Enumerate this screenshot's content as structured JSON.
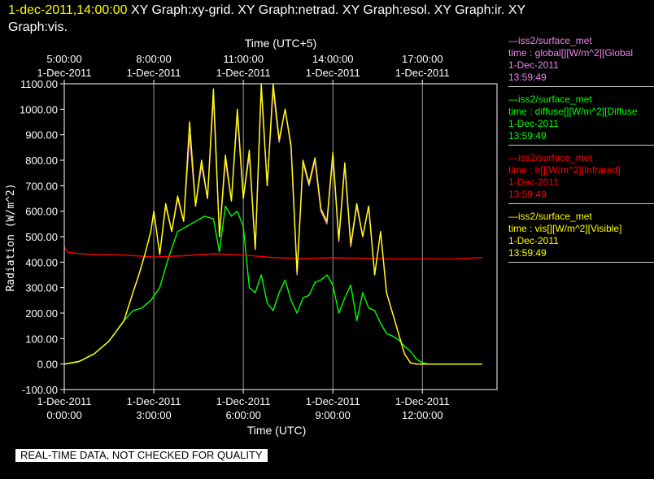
{
  "header": {
    "timestamp": "1-dec-2011,14:00:00",
    "graphs_line1": "XY Graph:xy-grid.  XY Graph:netrad.  XY Graph:esol.  XY Graph:ir.  XY",
    "graphs_line2": "Graph:vis."
  },
  "legend": [
    {
      "source": "iss2/surface_met",
      "var": "time : global[][W/m^2][Global",
      "date": "1-Dec-2011",
      "time": "13:59:49",
      "color": "#ee82ee"
    },
    {
      "source": "iss2/surface_met",
      "var": "time : diffuse[][W/m^2][Diffuse",
      "date": "1-Dec-2011",
      "time": "13:59:49",
      "color": "#00ff00"
    },
    {
      "source": "iss2/surface_met",
      "var": "time : ir[][W/m^2][Infrared]",
      "date": "1-Dec-2011",
      "time": "13:59:49",
      "color": "#ff0000"
    },
    {
      "source": "iss2/surface_met",
      "var": "time : vis[][W/m^2][Visible]",
      "date": "1-Dec-2011",
      "time": "13:59:49",
      "color": "#ffff00"
    }
  ],
  "banner": "REAL-TIME DATA, NOT CHECKED FOR QUALITY",
  "chart_data": {
    "type": "line",
    "xlabel": "Time (UTC)",
    "x2label": "Time (UTC+5)",
    "ylabel": "Radiation (W/m^2)",
    "ylim": [
      -100,
      1100
    ],
    "xlim_hours": [
      0,
      14.5
    ],
    "grid": true,
    "yticks": [
      "-100.00",
      "0.00",
      "100.00",
      "200.00",
      "300.00",
      "400.00",
      "500.00",
      "600.00",
      "700.00",
      "800.00",
      "900.00",
      "1000.00",
      "1100.00"
    ],
    "xticks_bottom": [
      {
        "date": "1-Dec-2011",
        "time": "0:00:00"
      },
      {
        "date": "1-Dec-2011",
        "time": "3:00:00"
      },
      {
        "date": "1-Dec-2011",
        "time": "6:00:00"
      },
      {
        "date": "1-Dec-2011",
        "time": "9:00:00"
      },
      {
        "date": "1-Dec-2011",
        "time": "12:00:00"
      }
    ],
    "xticks_top": [
      {
        "time": "5:00:00",
        "date": "1-Dec-2011"
      },
      {
        "time": "8:00:00",
        "date": "1-Dec-2011"
      },
      {
        "time": "11:00:00",
        "date": "1-Dec-2011"
      },
      {
        "time": "14:00:00",
        "date": "1-Dec-2011"
      },
      {
        "time": "17:00:00",
        "date": "1-Dec-2011"
      }
    ],
    "series": [
      {
        "name": "global",
        "color": "#ee82ee",
        "x": [
          0,
          0.5,
          1.0,
          1.5,
          2.0,
          2.3,
          2.5,
          2.7,
          2.9,
          3.0,
          3.2,
          3.4,
          3.6,
          3.8,
          4.0,
          4.2,
          4.4,
          4.6,
          4.8,
          5.0,
          5.2,
          5.4,
          5.6,
          5.8,
          6.0,
          6.2,
          6.4,
          6.6,
          6.8,
          7.0,
          7.2,
          7.4,
          7.6,
          7.8,
          8.0,
          8.2,
          8.4,
          8.6,
          8.8,
          9.0,
          9.2,
          9.4,
          9.6,
          9.8,
          10.0,
          10.2,
          10.4,
          10.6,
          10.8,
          11.0,
          11.2,
          11.4,
          11.6,
          11.8,
          12.0,
          12.5,
          13.0,
          13.5,
          14.0
        ],
        "y": [
          0,
          10,
          40,
          90,
          170,
          280,
          350,
          430,
          520,
          600,
          430,
          620,
          520,
          650,
          560,
          900,
          620,
          780,
          650,
          1050,
          500,
          800,
          640,
          980,
          650,
          820,
          450,
          1080,
          700,
          1080,
          870,
          1000,
          850,
          350,
          790,
          700,
          800,
          600,
          550,
          820,
          480,
          780,
          460,
          620,
          500,
          620,
          350,
          520,
          280,
          200,
          120,
          40,
          5,
          0,
          0,
          0,
          0,
          0,
          0
        ]
      },
      {
        "name": "diffuse",
        "color": "#00ff00",
        "x": [
          0,
          0.5,
          1.0,
          1.5,
          2.0,
          2.3,
          2.6,
          2.9,
          3.2,
          3.5,
          3.8,
          4.1,
          4.4,
          4.7,
          5.0,
          5.2,
          5.4,
          5.6,
          5.8,
          6.0,
          6.2,
          6.4,
          6.6,
          6.8,
          7.0,
          7.2,
          7.4,
          7.6,
          7.8,
          8.0,
          8.2,
          8.4,
          8.6,
          8.8,
          9.0,
          9.2,
          9.4,
          9.6,
          9.8,
          10.0,
          10.2,
          10.4,
          10.6,
          10.8,
          11.0,
          11.2,
          11.4,
          11.6,
          11.8,
          12.0,
          12.2,
          12.5,
          13.0,
          13.5,
          14.0
        ],
        "y": [
          0,
          10,
          40,
          90,
          170,
          210,
          220,
          250,
          300,
          420,
          520,
          540,
          560,
          580,
          570,
          440,
          620,
          580,
          600,
          540,
          300,
          280,
          350,
          240,
          210,
          280,
          330,
          250,
          200,
          260,
          270,
          320,
          330,
          350,
          310,
          200,
          260,
          310,
          170,
          280,
          220,
          210,
          160,
          120,
          110,
          95,
          70,
          50,
          20,
          5,
          0,
          0,
          0,
          0,
          0
        ]
      },
      {
        "name": "ir",
        "color": "#ff0000",
        "x": [
          0,
          0.1,
          0.4,
          1,
          2,
          3,
          4,
          5,
          6,
          7,
          8,
          9,
          10,
          11,
          12,
          13,
          14
        ],
        "y": [
          460,
          440,
          435,
          430,
          428,
          420,
          425,
          433,
          428,
          418,
          414,
          417,
          415,
          412,
          413,
          412,
          418
        ]
      },
      {
        "name": "vis",
        "color": "#ffff00",
        "x": [
          0,
          0.5,
          1.0,
          1.5,
          2.0,
          2.3,
          2.5,
          2.7,
          2.9,
          3.0,
          3.2,
          3.4,
          3.6,
          3.8,
          4.0,
          4.2,
          4.4,
          4.6,
          4.8,
          5.0,
          5.2,
          5.4,
          5.6,
          5.8,
          6.0,
          6.2,
          6.4,
          6.6,
          6.8,
          7.0,
          7.2,
          7.4,
          7.6,
          7.8,
          8.0,
          8.2,
          8.4,
          8.6,
          8.8,
          9.0,
          9.2,
          9.4,
          9.6,
          9.8,
          10.0,
          10.2,
          10.4,
          10.6,
          10.8,
          11.0,
          11.2,
          11.4,
          11.6,
          11.8,
          12.0,
          12.5,
          13.0,
          13.5,
          14.0
        ],
        "y": [
          0,
          10,
          40,
          90,
          170,
          280,
          350,
          430,
          520,
          600,
          430,
          630,
          520,
          660,
          560,
          950,
          620,
          800,
          650,
          1080,
          500,
          820,
          640,
          1000,
          650,
          840,
          450,
          1100,
          700,
          1100,
          880,
          1000,
          860,
          360,
          800,
          710,
          810,
          610,
          560,
          830,
          490,
          790,
          470,
          630,
          500,
          620,
          350,
          520,
          280,
          200,
          120,
          40,
          5,
          0,
          0,
          0,
          0,
          0,
          0
        ]
      }
    ]
  }
}
